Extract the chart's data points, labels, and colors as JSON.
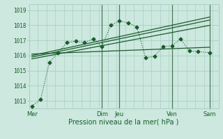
{
  "xlabel": "Pression niveau de la mer( hPa )",
  "bg_color": "#cce8df",
  "plot_bg_color": "#cce8df",
  "grid_color": "#aacfc5",
  "line_color": "#1a5c2a",
  "vline_color": "#4a7a5a",
  "tick_label_color": "#1a5c2a",
  "ylim": [
    1012.5,
    1019.4
  ],
  "yticks": [
    1013,
    1014,
    1015,
    1016,
    1017,
    1018,
    1019
  ],
  "xlim": [
    0,
    130
  ],
  "day_labels": [
    "Mer",
    "Dim",
    "Jeu",
    "Ven",
    "Sam"
  ],
  "day_positions": [
    2,
    50,
    62,
    98,
    124
  ],
  "main_x": [
    2,
    8,
    14,
    20,
    26,
    32,
    38,
    44,
    50,
    56,
    62,
    68,
    74,
    80,
    86,
    92,
    98,
    104,
    110,
    116,
    124
  ],
  "main_y": [
    1012.65,
    1013.1,
    1015.55,
    1016.2,
    1016.85,
    1016.95,
    1016.85,
    1017.1,
    1016.6,
    1018.0,
    1018.3,
    1018.15,
    1017.9,
    1015.85,
    1015.95,
    1016.6,
    1016.65,
    1017.1,
    1016.3,
    1016.25,
    1016.2
  ],
  "trend1_x": [
    2,
    124
  ],
  "trend1_y": [
    1015.9,
    1018.35
  ],
  "trend2_x": [
    2,
    124
  ],
  "trend2_y": [
    1015.78,
    1018.0
  ],
  "trend3_x": [
    2,
    124
  ],
  "trend3_y": [
    1016.0,
    1018.55
  ],
  "trend4_x": [
    2,
    124
  ],
  "trend4_y": [
    1016.1,
    1016.55
  ],
  "vline_positions": [
    50,
    62,
    98,
    124
  ]
}
